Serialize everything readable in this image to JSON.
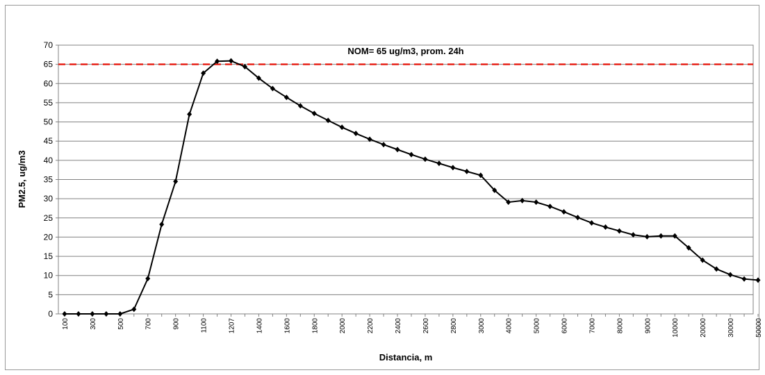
{
  "chart_data": {
    "type": "line",
    "x_label": "Distancia, m",
    "y_label": "PM2.5, ug/m3",
    "categories": [
      "100",
      null,
      "300",
      null,
      "500",
      null,
      "700",
      null,
      "900",
      null,
      "1100",
      null,
      "1207",
      null,
      "1400",
      null,
      "1600",
      null,
      "1800",
      null,
      "2000",
      null,
      "2200",
      null,
      "2400",
      null,
      "2600",
      null,
      "2800",
      null,
      "3000",
      null,
      "4000",
      null,
      "5000",
      null,
      "6000",
      null,
      "7000",
      null,
      "8000",
      null,
      "9000",
      null,
      "10000",
      null,
      "20000",
      null,
      "30000",
      null,
      "50000"
    ],
    "series": [
      {
        "color": "#000000",
        "values": [
          0,
          0,
          0,
          0,
          0,
          1.2,
          9.2,
          23.3,
          34.5,
          52,
          62.7,
          65.8,
          65.9,
          64.4,
          61.4,
          58.7,
          56.4,
          54.2,
          52.2,
          50.4,
          48.6,
          47,
          45.5,
          44.1,
          42.8,
          41.5,
          40.3,
          39.2,
          38.1,
          37.1,
          36.1,
          32.2,
          29.1,
          29.5,
          29.1,
          28,
          26.6,
          25.1,
          23.7,
          22.6,
          21.6,
          20.6,
          20.1,
          20.3,
          20.3,
          17.2,
          14,
          11.7,
          10.2,
          9.1,
          8.8
        ]
      }
    ],
    "reference_line": {
      "value": 65,
      "label": "NOM= 65 ug/m3, prom. 24h",
      "color": "#e8261c"
    },
    "ylim": [
      0,
      70
    ],
    "yticks": [
      0,
      5,
      10,
      15,
      20,
      25,
      30,
      35,
      40,
      45,
      50,
      55,
      60,
      65,
      70
    ],
    "grid": true
  }
}
